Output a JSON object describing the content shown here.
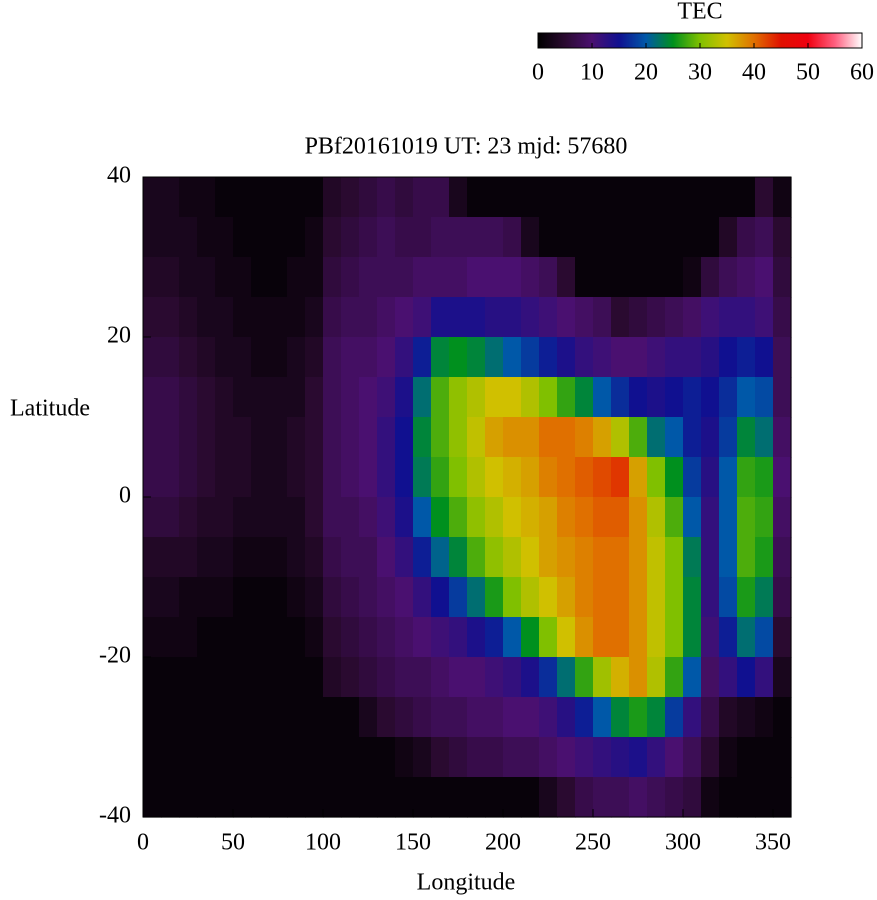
{
  "chart_data": {
    "type": "heatmap",
    "title": "PBf20161019  UT: 23  mjd: 57680",
    "xlabel": "Longitude",
    "ylabel": "Latitude",
    "xlim": [
      0,
      360
    ],
    "ylim": [
      -40,
      40
    ],
    "xticks": [
      0,
      50,
      100,
      150,
      200,
      250,
      300,
      350
    ],
    "yticks": [
      -40,
      -20,
      0,
      20,
      40
    ],
    "x": [
      5,
      15,
      25,
      35,
      45,
      55,
      65,
      75,
      85,
      95,
      105,
      115,
      125,
      135,
      145,
      155,
      165,
      175,
      185,
      195,
      205,
      215,
      225,
      235,
      245,
      255,
      265,
      275,
      285,
      295,
      305,
      315,
      325,
      335,
      345,
      355
    ],
    "y": [
      37.5,
      32.5,
      27.5,
      22.5,
      17.5,
      12.5,
      7.5,
      2.5,
      -2.5,
      -7.5,
      -12.5,
      -17.5,
      -22.5,
      -27.5,
      -32.5,
      -37.5
    ],
    "z": [
      [
        3,
        3,
        2,
        2,
        1,
        1,
        1,
        1,
        1,
        1,
        4,
        5,
        6,
        7,
        6,
        7,
        7,
        3,
        1,
        1,
        1,
        1,
        1,
        1,
        1,
        1,
        1,
        1,
        1,
        1,
        1,
        1,
        1,
        1,
        5,
        2
      ],
      [
        3,
        3,
        3,
        2,
        2,
        1,
        1,
        1,
        1,
        2,
        5,
        6,
        7,
        8,
        7,
        7,
        8,
        8,
        8,
        8,
        7,
        3,
        1,
        1,
        1,
        1,
        1,
        1,
        1,
        1,
        1,
        1,
        4,
        7,
        8,
        5
      ],
      [
        4,
        4,
        3,
        3,
        2,
        2,
        1,
        1,
        2,
        2,
        6,
        7,
        8,
        8,
        8,
        9,
        9,
        9,
        10,
        10,
        10,
        9,
        8,
        5,
        1,
        1,
        1,
        1,
        1,
        1,
        2,
        6,
        8,
        9,
        10,
        6
      ],
      [
        5,
        5,
        4,
        3,
        3,
        2,
        2,
        2,
        2,
        3,
        7,
        8,
        8,
        9,
        10,
        11,
        14,
        14,
        14,
        13,
        13,
        12,
        11,
        10,
        9,
        8,
        5,
        6,
        7,
        8,
        9,
        11,
        12,
        12,
        11,
        7
      ],
      [
        6,
        6,
        5,
        4,
        3,
        3,
        2,
        2,
        3,
        4,
        8,
        9,
        9,
        10,
        12,
        16,
        24,
        25,
        24,
        22,
        20,
        18,
        16,
        14,
        12,
        11,
        10,
        10,
        11,
        12,
        12,
        13,
        15,
        16,
        15,
        8
      ],
      [
        7,
        7,
        6,
        5,
        4,
        3,
        3,
        3,
        3,
        5,
        8,
        9,
        10,
        11,
        14,
        22,
        28,
        31,
        33,
        35,
        35,
        33,
        30,
        27,
        24,
        20,
        17,
        15,
        14,
        15,
        16,
        15,
        17,
        20,
        19,
        8
      ],
      [
        7,
        7,
        6,
        5,
        4,
        4,
        3,
        3,
        4,
        5,
        8,
        9,
        10,
        12,
        15,
        24,
        28,
        31,
        34,
        37,
        38,
        38,
        40,
        40,
        39,
        37,
        33,
        28,
        22,
        20,
        16,
        14,
        18,
        24,
        22,
        9
      ],
      [
        7,
        7,
        6,
        5,
        4,
        4,
        3,
        3,
        4,
        5,
        8,
        9,
        10,
        12,
        15,
        23,
        27,
        30,
        33,
        35,
        36,
        37,
        39,
        40,
        41,
        42,
        43,
        37,
        30,
        25,
        18,
        13,
        20,
        27,
        26,
        10
      ],
      [
        6,
        6,
        5,
        4,
        4,
        3,
        3,
        3,
        3,
        5,
        8,
        8,
        9,
        11,
        14,
        20,
        25,
        28,
        31,
        33,
        35,
        36,
        37,
        39,
        40,
        41,
        41,
        38,
        33,
        28,
        20,
        12,
        20,
        28,
        27,
        9
      ],
      [
        4,
        4,
        4,
        3,
        3,
        2,
        2,
        2,
        3,
        4,
        7,
        8,
        8,
        10,
        12,
        16,
        21,
        24,
        28,
        31,
        33,
        35,
        37,
        38,
        39,
        40,
        40,
        38,
        34,
        30,
        23,
        12,
        20,
        28,
        26,
        8
      ],
      [
        3,
        3,
        2,
        2,
        2,
        1,
        1,
        1,
        2,
        3,
        6,
        7,
        8,
        9,
        10,
        12,
        15,
        18,
        22,
        26,
        30,
        33,
        35,
        37,
        39,
        40,
        40,
        38,
        34,
        30,
        24,
        12,
        19,
        26,
        23,
        7
      ],
      [
        2,
        2,
        2,
        1,
        1,
        1,
        1,
        1,
        1,
        2,
        5,
        6,
        7,
        8,
        9,
        10,
        11,
        12,
        14,
        16,
        20,
        25,
        30,
        35,
        38,
        40,
        40,
        38,
        34,
        30,
        24,
        11,
        16,
        22,
        19,
        5
      ],
      [
        1,
        1,
        1,
        1,
        1,
        1,
        1,
        1,
        1,
        1,
        4,
        5,
        6,
        7,
        8,
        8,
        9,
        10,
        10,
        11,
        12,
        14,
        17,
        22,
        27,
        32,
        36,
        38,
        33,
        27,
        20,
        9,
        12,
        15,
        12,
        3
      ],
      [
        1,
        1,
        1,
        1,
        1,
        1,
        1,
        1,
        1,
        1,
        1,
        1,
        3,
        5,
        6,
        7,
        8,
        8,
        9,
        9,
        10,
        10,
        11,
        13,
        16,
        20,
        24,
        26,
        24,
        18,
        12,
        7,
        4,
        3,
        2,
        1
      ],
      [
        1,
        1,
        1,
        1,
        1,
        1,
        1,
        1,
        1,
        1,
        1,
        1,
        1,
        1,
        2,
        3,
        5,
        6,
        7,
        7,
        8,
        8,
        9,
        10,
        11,
        12,
        13,
        14,
        12,
        10,
        8,
        5,
        2,
        1,
        1,
        1
      ],
      [
        1,
        1,
        1,
        1,
        1,
        1,
        1,
        1,
        1,
        1,
        1,
        1,
        1,
        1,
        1,
        1,
        1,
        1,
        1,
        1,
        1,
        1,
        3,
        5,
        7,
        8,
        8,
        9,
        8,
        7,
        6,
        2,
        1,
        1,
        1,
        1
      ]
    ],
    "colorbar": {
      "label": "TEC",
      "lim": [
        0,
        60
      ],
      "ticks": [
        0,
        10,
        20,
        30,
        40,
        50,
        60
      ]
    },
    "colorscale": [
      [
        0,
        "#000000"
      ],
      [
        5,
        "#2a0a30"
      ],
      [
        10,
        "#4a1070"
      ],
      [
        15,
        "#101090"
      ],
      [
        20,
        "#0058a8"
      ],
      [
        25,
        "#00901e"
      ],
      [
        30,
        "#80c000"
      ],
      [
        35,
        "#d0c000"
      ],
      [
        40,
        "#e07000"
      ],
      [
        45,
        "#e01000"
      ],
      [
        50,
        "#f00010"
      ],
      [
        55,
        "#ff6080"
      ],
      [
        60,
        "#ffffff"
      ]
    ]
  }
}
